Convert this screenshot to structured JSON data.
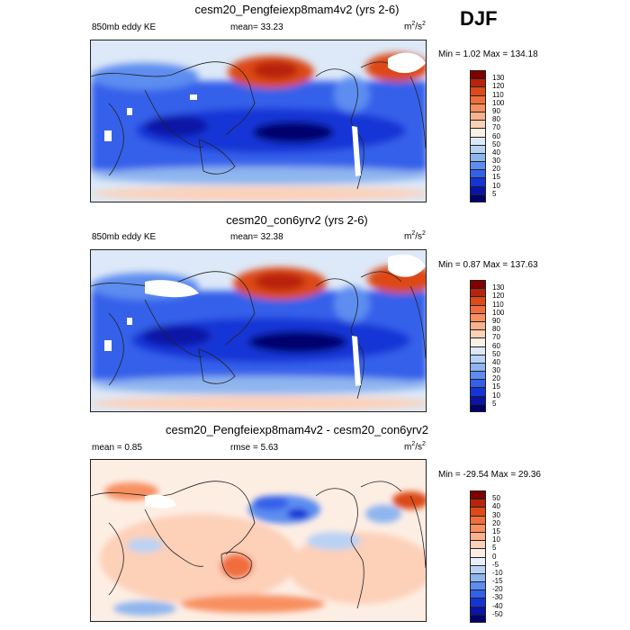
{
  "season": "DJF",
  "unit_base": "m",
  "unit_exp": "2",
  "unit_den": "/s",
  "panels": [
    {
      "title": "cesm20_Pengfeiexp8mam4v2 (yrs 2-6)",
      "left_label": "850mb eddy KE",
      "center_label": "mean=  33.23",
      "range_label": "Min =   1.02 Max = 134.18",
      "kind": "field"
    },
    {
      "title": "cesm20_con6yrv2 (yrs 2-6)",
      "left_label": "850mb eddy KE",
      "center_label": "mean=  32.38",
      "range_label": "Min =   0.87 Max = 137.63",
      "kind": "field"
    },
    {
      "title": "cesm20_Pengfeiexp8mam4v2 - cesm20_con6yrv2",
      "left_label": "mean =   0.85",
      "center_label": "rmse =   5.63",
      "range_label": "Min = -29.54 Max =  29.36",
      "kind": "diff"
    }
  ],
  "colorbar_field": {
    "labels": [
      "130",
      "120",
      "110",
      "100",
      "90",
      "80",
      "70",
      "60",
      "50",
      "40",
      "30",
      "20",
      "15",
      "10",
      "5"
    ],
    "colors": [
      "#800000",
      "#b8240c",
      "#dc4a18",
      "#f06e3c",
      "#f88f60",
      "#fbb08e",
      "#fdd0b8",
      "#fdf0e6",
      "#dde9f8",
      "#b9d2f4",
      "#8fb5ef",
      "#5d8df0",
      "#3461ea",
      "#1434d6",
      "#0a14a6",
      "#02006e"
    ]
  },
  "colorbar_diff": {
    "labels": [
      "50",
      "40",
      "30",
      "20",
      "15",
      "10",
      "5",
      "0",
      "-5",
      "-10",
      "-15",
      "-20",
      "-30",
      "-40",
      "-50"
    ],
    "colors": [
      "#800000",
      "#b8240c",
      "#dc4a18",
      "#f06e3c",
      "#f88f60",
      "#fbb08e",
      "#fdd0b8",
      "#fdeee4",
      "#e6effa",
      "#b9d2f4",
      "#8fb5ef",
      "#5d8df0",
      "#3461ea",
      "#1434d6",
      "#0a14a6",
      "#02006e"
    ]
  }
}
